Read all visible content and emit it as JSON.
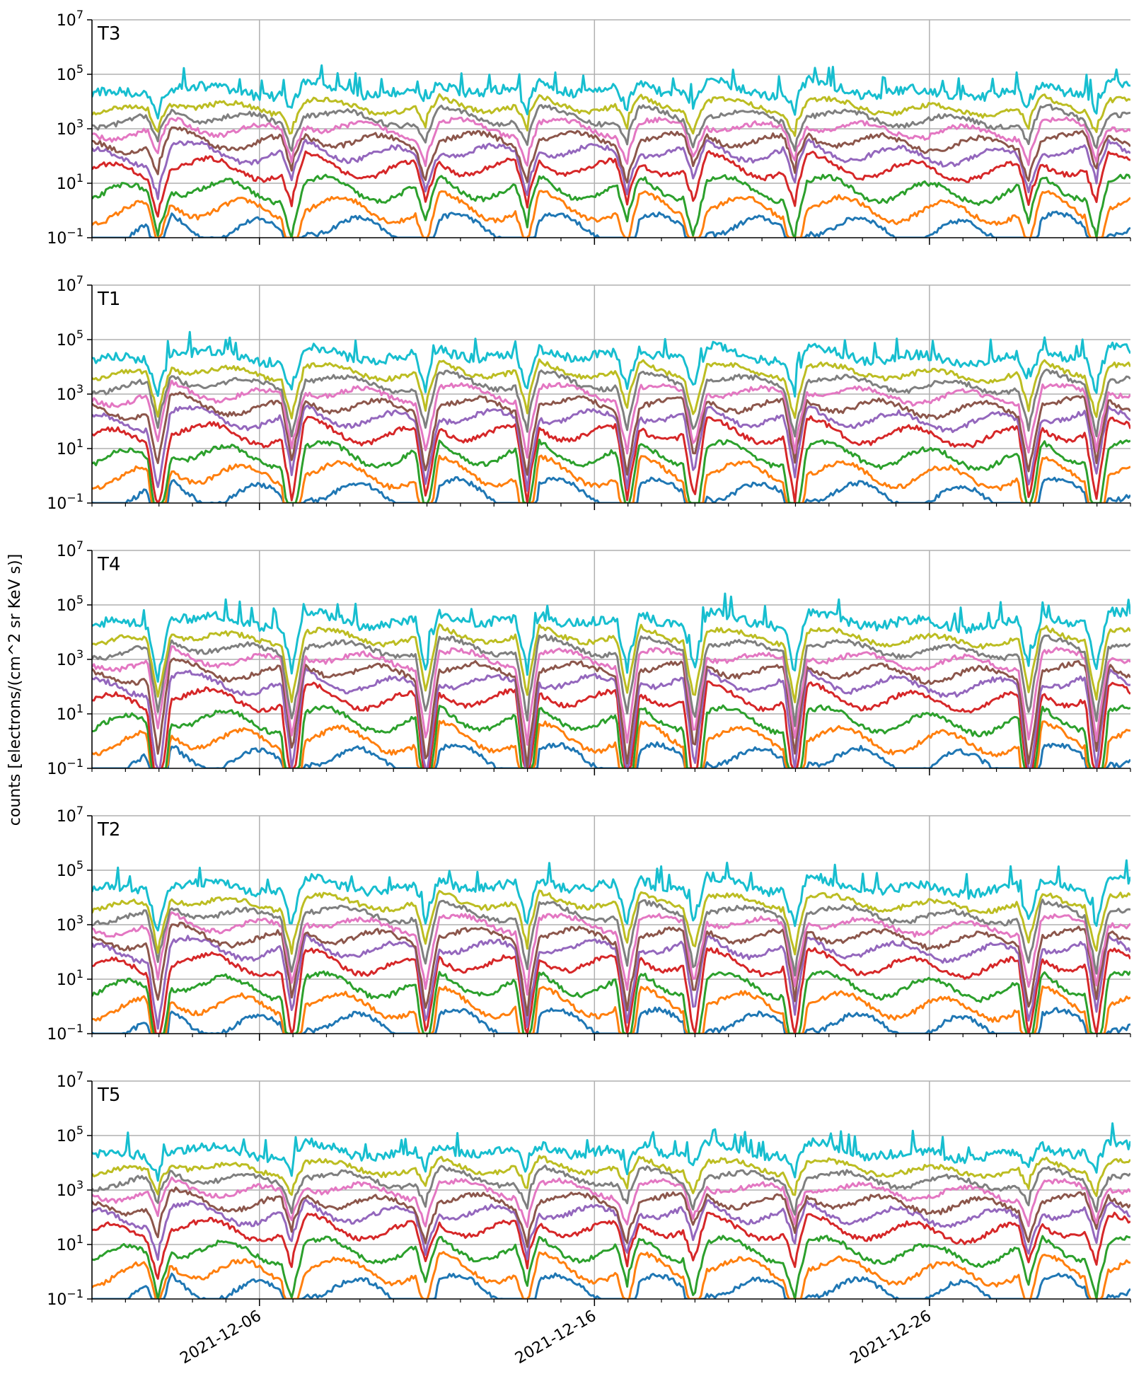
{
  "chart_data": {
    "type": "line",
    "ylabel": "counts [electrons/(cm^2 sr KeV s)]",
    "yscale": "log",
    "ylim": [
      0.1,
      10000000
    ],
    "yticks": [
      {
        "exp": "−1"
      },
      {
        "exp": "1"
      },
      {
        "exp": "3"
      },
      {
        "exp": "5"
      },
      {
        "exp": "7"
      }
    ],
    "xlim": [
      "2021-12-01",
      "2022-01-01"
    ],
    "xticks": [
      {
        "date": "2021-12-06",
        "label": "2021-12-06"
      },
      {
        "date": "2021-12-16",
        "label": "2021-12-16"
      },
      {
        "date": "2021-12-26",
        "label": "2021-12-26"
      }
    ],
    "grid": true,
    "colors": [
      "#1f77b4",
      "#ff7f0e",
      "#2ca02c",
      "#d62728",
      "#9467bd",
      "#8c564b",
      "#e377c2",
      "#7f7f7f",
      "#bcbd22",
      "#17becf"
    ],
    "series_levels": [
      0.15,
      0.8,
      4,
      25,
      90,
      250,
      700,
      1800,
      4500,
      18000
    ],
    "dip_dates": [
      "2021-12-03",
      "2021-12-07",
      "2021-12-11",
      "2021-12-14",
      "2021-12-17",
      "2021-12-19",
      "2021-12-22",
      "2021-12-29",
      "2021-12-31"
    ],
    "panels": [
      {
        "title": "T3",
        "level_shift": 1.0,
        "dip_depth": 0.5
      },
      {
        "title": "T1",
        "level_shift": 1.0,
        "dip_depth": 0.9
      },
      {
        "title": "T4",
        "level_shift": 1.0,
        "dip_depth": 1.3
      },
      {
        "title": "T2",
        "level_shift": 1.0,
        "dip_depth": 1.0
      },
      {
        "title": "T5",
        "level_shift": 1.0,
        "dip_depth": 0.5
      }
    ]
  }
}
